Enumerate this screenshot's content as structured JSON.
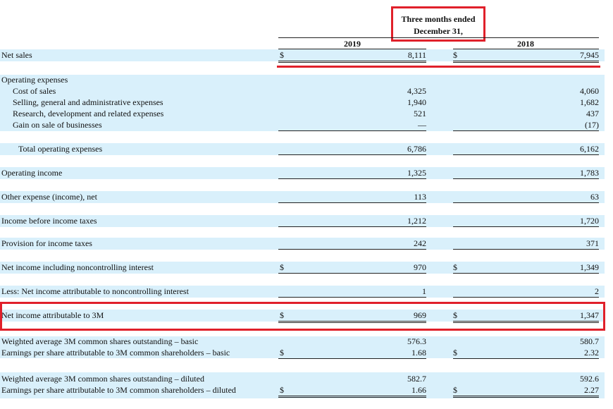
{
  "header": {
    "title_line1": "Three months ended",
    "title_line2": "December 31,",
    "years": [
      "2019",
      "2018"
    ]
  },
  "table": {
    "rows": [
      {
        "label": "Net sales",
        "dollar_2019": "$",
        "value_2019": "8,111",
        "dollar_2018": "$",
        "value_2018": "7,945"
      },
      {
        "label": "Operating expenses"
      },
      {
        "label": "Cost of sales",
        "value_2019": "4,325",
        "value_2018": "4,060"
      },
      {
        "label": "Selling, general and administrative expenses",
        "value_2019": "1,940",
        "value_2018": "1,682"
      },
      {
        "label": "Research, development and related expenses",
        "value_2019": "521",
        "value_2018": "437"
      },
      {
        "label": "Gain on sale of businesses",
        "value_2019": "—",
        "value_2018": "(17)"
      },
      {
        "label": "Total operating expenses",
        "value_2019": "6,786",
        "value_2018": "6,162"
      },
      {
        "label": "Operating income",
        "value_2019": "1,325",
        "value_2018": "1,783"
      },
      {
        "label": "Other expense (income), net",
        "value_2019": "113",
        "value_2018": "63"
      },
      {
        "label": "Income before income taxes",
        "value_2019": "1,212",
        "value_2018": "1,720"
      },
      {
        "label": "Provision for income taxes",
        "value_2019": "242",
        "value_2018": "371"
      },
      {
        "label": "Net income including noncontrolling interest",
        "dollar_2019": "$",
        "value_2019": "970",
        "dollar_2018": "$",
        "value_2018": "1,349"
      },
      {
        "label": "Less: Net income attributable to noncontrolling interest",
        "value_2019": "1",
        "value_2018": "2"
      },
      {
        "label": "Net income attributable to 3M",
        "dollar_2019": "$",
        "value_2019": "969",
        "dollar_2018": "$",
        "value_2018": "1,347"
      },
      {
        "label": "Weighted average 3M common shares outstanding – basic",
        "value_2019": "576.3",
        "value_2018": "580.7"
      },
      {
        "label": "Earnings per share attributable to 3M common shareholders – basic",
        "dollar_2019": "$",
        "value_2019": "1.68",
        "dollar_2018": "$",
        "value_2018": "2.32"
      },
      {
        "label": "Weighted average 3M common shares outstanding – diluted",
        "value_2019": "582.7",
        "value_2018": "592.6"
      },
      {
        "label": "Earnings per share attributable to 3M common shareholders – diluted",
        "dollar_2019": "$",
        "value_2019": "1.66",
        "dollar_2018": "$",
        "value_2018": "2.27"
      }
    ]
  }
}
